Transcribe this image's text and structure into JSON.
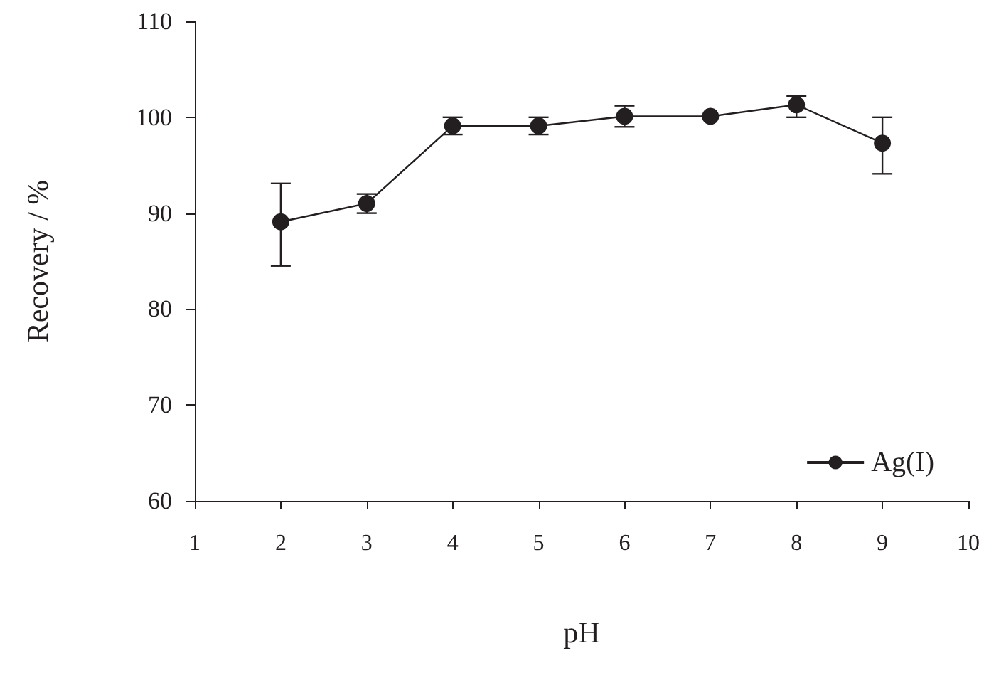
{
  "chart_data": {
    "type": "line",
    "xlabel": "pH",
    "ylabel": "Recovery / %",
    "x": [
      2,
      3,
      4,
      5,
      6,
      7,
      8,
      9
    ],
    "series": [
      {
        "name": "Ag(I)",
        "color": "#231f20",
        "values": [
          89.1,
          91.0,
          99.1,
          99.1,
          100.1,
          100.1,
          101.3,
          97.3
        ],
        "errors": [
          [
            84.5,
            93.1
          ],
          1.0,
          0.9,
          0.9,
          1.1,
          null,
          [
            100,
            102.2
          ],
          [
            94.1,
            100
          ]
        ]
      }
    ],
    "xlim": [
      1,
      10
    ],
    "xticks": [
      1,
      2,
      3,
      4,
      5,
      6,
      7,
      8,
      9,
      10
    ],
    "ylim": [
      60,
      110
    ],
    "yticks": [
      60,
      70,
      80,
      90,
      100,
      110
    ],
    "grid": false,
    "legend": "bottom right",
    "marker": "circle",
    "line_style": "solid"
  }
}
